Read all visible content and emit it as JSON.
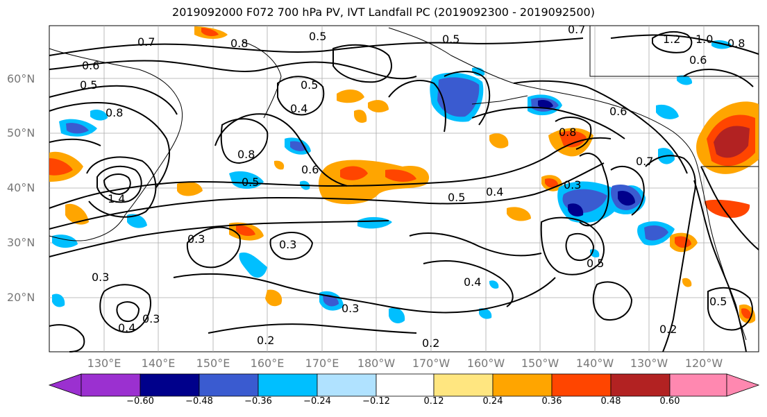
{
  "title": "2019092000 F072 700 hPa PV, IVT Landfall PC (2019092300 - 2019092500)",
  "lat_labels": [
    "60°N",
    "50°N",
    "40°N",
    "30°N",
    "20°N"
  ],
  "lon_labels": [
    "130°E",
    "140°E",
    "150°E",
    "160°E",
    "170°E",
    "180°W",
    "170°W",
    "160°W",
    "150°W",
    "140°W",
    "130°W",
    "120°W"
  ],
  "colorbar": {
    "ticks": [
      "−0.60",
      "−0.48",
      "−0.36",
      "−0.24",
      "−0.12",
      "0.12",
      "0.24",
      "0.36",
      "0.48",
      "0.60"
    ],
    "colors": [
      "#9b30d0",
      "#00008b",
      "#3a5bd0",
      "#00bfff",
      "#b0e2ff",
      "#ffffff",
      "#ffe680",
      "#ffa500",
      "#ff4500",
      "#b22222",
      "#ff88b0"
    ]
  },
  "contour_labels": [
    "0.7",
    "0.8",
    "0.5",
    "0.6",
    "0.4",
    "0.3",
    "0.2",
    "1.2",
    "1.0",
    "1.4"
  ]
}
